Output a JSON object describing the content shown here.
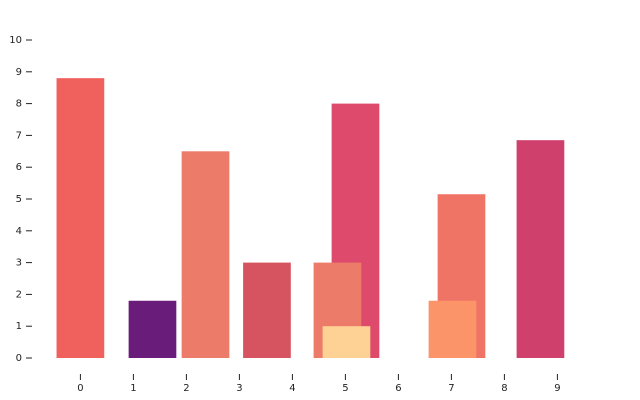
{
  "chart_data": {
    "type": "bar",
    "x": [
      0,
      1.36,
      2.36,
      3.52,
      5.19,
      4.85,
      5.02,
      7.19,
      7.02,
      8.68
    ],
    "values": [
      8.8,
      1.8,
      6.5,
      3.0,
      8.0,
      3.0,
      1.0,
      5.15,
      1.8,
      6.85
    ],
    "colors": [
      "#f0605d",
      "#6a1c7a",
      "#ec7b69",
      "#d6545f",
      "#de4a6b",
      "#ec7b69",
      "#fed295",
      "#f07466",
      "#fb9468",
      "#cf406d"
    ],
    "xlim": [
      -0.8,
      10.2
    ],
    "xticks": [
      0,
      1,
      2,
      3,
      4,
      5,
      6,
      7,
      8,
      9
    ],
    "ylim": [
      0,
      10
    ],
    "yticks": [
      0,
      1,
      2,
      3,
      4,
      5,
      6,
      7,
      8,
      9,
      10
    ]
  }
}
